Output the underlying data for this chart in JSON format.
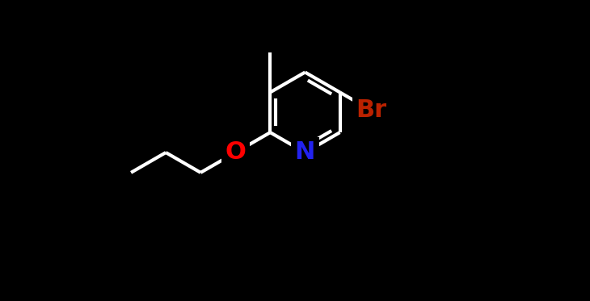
{
  "background_color": "#000000",
  "bond_color": "#ffffff",
  "bond_width": 3.0,
  "atom_colors": {
    "N": "#2222ee",
    "O": "#ff0000",
    "Br": "#bb2200",
    "C": "#ffffff"
  },
  "font_size_atoms": 22,
  "figsize": [
    7.3,
    3.73
  ],
  "dpi": 100,
  "xlim": [
    -4.5,
    5.0
  ],
  "ylim": [
    -3.5,
    4.0
  ]
}
